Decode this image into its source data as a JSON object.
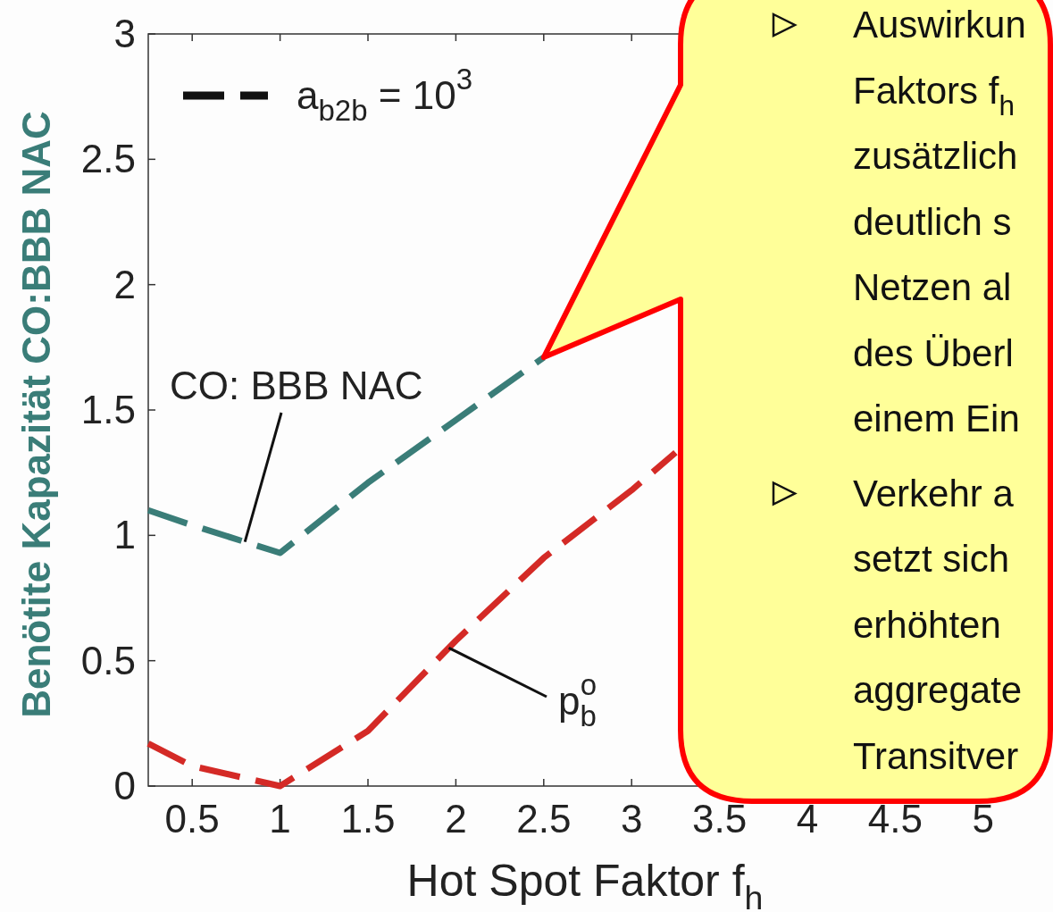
{
  "chart_data": {
    "type": "line",
    "xlabel": "Hot Spot Faktor f$_{h}$",
    "ylabel": "Benötite Kapazität CO:BBB NAC",
    "xlim": [
      0.25,
      5.25
    ],
    "xticks": [
      0.5,
      1,
      1.5,
      2,
      2.5,
      3,
      3.5,
      4,
      4.5,
      5
    ],
    "ylim": [
      0,
      3
    ],
    "yticks": [
      0,
      0.5,
      1,
      1.5,
      2,
      2.5,
      3
    ],
    "line_style": "dashed",
    "marker": "none",
    "grid": false,
    "series": [
      {
        "name": "CO: BBB NAC",
        "color": "#3a7d78",
        "x": [
          0.25,
          0.5,
          1,
          1.5,
          2,
          2.5
        ],
        "values": [
          1.1,
          1.04,
          0.93,
          1.21,
          1.46,
          1.71
        ]
      },
      {
        "name": "p$_{b}$$^{o}$",
        "color": "#d42a26",
        "x": [
          0.25,
          0.5,
          1,
          1.5,
          2,
          2.5,
          3,
          3.25
        ],
        "values": [
          0.17,
          0.08,
          0,
          0.22,
          0.58,
          0.91,
          1.18,
          1.33
        ]
      }
    ],
    "annotations": [
      "a$_{b2b}$ = 10$^{3}$",
      "Auswirkun\nFaktors f$_{h}$\nzusätzlich\ndeutlich s\nNetzen al\ndes Überl\neinem Ein",
      "Verkehr a\nsetzt sich\nerhöhten\naggregate\nTransitver"
    ]
  }
}
